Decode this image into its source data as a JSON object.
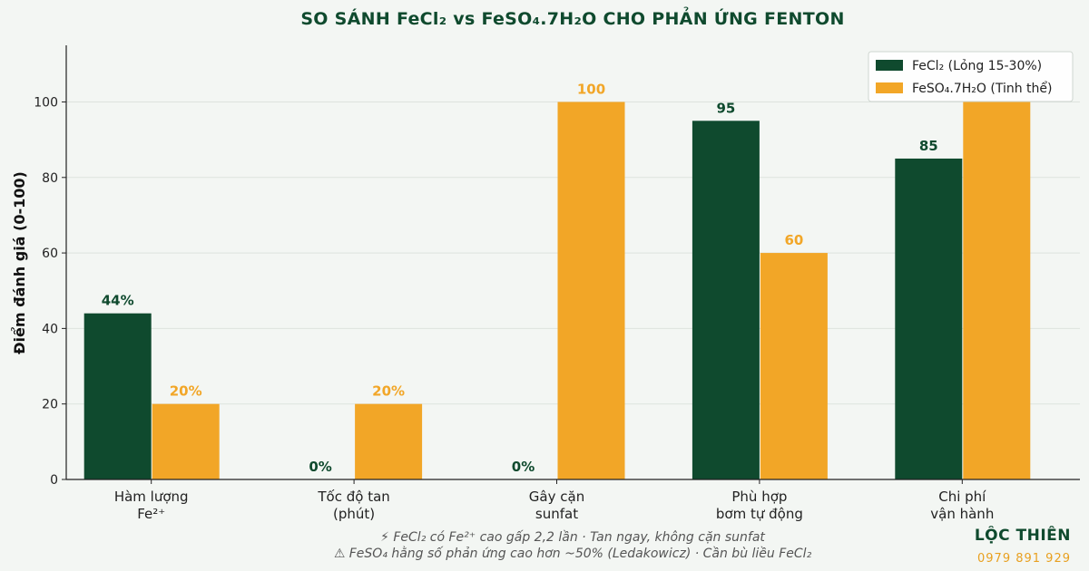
{
  "chart_data": {
    "type": "bar",
    "title": "SO SÁNH FeCl₂ vs FeSO₄.7H₂O CHO PHẢN ỨNG FENTON",
    "ylabel": "Điểm đánh giá (0-100)",
    "xlabel": "",
    "ylim": [
      0,
      115
    ],
    "yticks": [
      0,
      20,
      40,
      60,
      80,
      100
    ],
    "grid": true,
    "legend_position": "top-right",
    "categories": [
      [
        "Hàm lượng",
        "Fe²⁺"
      ],
      [
        "Tốc độ tan",
        "(phút)"
      ],
      [
        "Gây cặn",
        "sunfat"
      ],
      [
        "Phù hợp",
        "bơm tự động"
      ],
      [
        "Chi phí",
        "vận hành"
      ]
    ],
    "series": [
      {
        "name": "FeCl₂ (Lỏng 15-30%)",
        "color": "#0f4a2e",
        "values": [
          44,
          0,
          0,
          95,
          85
        ],
        "labels": [
          "44%",
          "0%",
          "0%",
          "95",
          "85"
        ]
      },
      {
        "name": "FeSO₄.7H₂O (Tinh thể)",
        "color": "#f2a627",
        "values": [
          20,
          20,
          100,
          60,
          100
        ],
        "labels": [
          "20%",
          "20%",
          "100",
          "60",
          ""
        ]
      }
    ]
  },
  "footnotes": [
    "⚡ FeCl₂ có Fe²⁺ cao gấp 2,2 lần · Tan ngay, không cặn sunfat",
    "⚠ FeSO₄ hằng số phản ứng cao hơn ~50% (Ledakowicz) · Cần bù liều FeCl₂"
  ],
  "brand": {
    "name": "LỘC THIÊN",
    "phone": "0979 891 929"
  }
}
